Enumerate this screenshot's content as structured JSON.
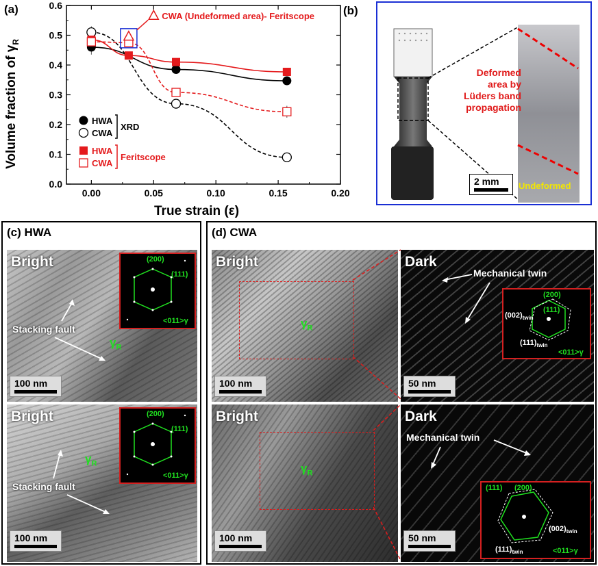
{
  "panel_a": {
    "label": "(a)",
    "ylabel": "Volume fraction of γ",
    "ylabel_sub": "R",
    "xlabel": "True strain (ε)",
    "annotation": "CWA (Undeformed area)- Feritscope",
    "legend": {
      "xrd": {
        "items": [
          "HWA",
          "CWA"
        ],
        "group": "XRD"
      },
      "feritscope": {
        "items": [
          "HWA",
          "CWA"
        ],
        "group": "Feritscope"
      }
    }
  },
  "panel_b": {
    "label": "(b)",
    "deformed_text": [
      "Deformed",
      "area by",
      "Lüders band",
      "propagation"
    ],
    "undeformed_text": "Undeformed",
    "scale": "2 mm"
  },
  "panel_c": {
    "label": "(c) HWA",
    "top": {
      "mode": "Bright",
      "scale": "100 nm",
      "note": "Stacking fault",
      "phase": "γ",
      "phase_sub": "R"
    },
    "bottom": {
      "mode": "Bright",
      "scale": "100 nm",
      "note": "Stacking fault",
      "phase": "γ",
      "phase_sub": "R"
    },
    "inset": {
      "spot1": "(200)",
      "spot2": "(111)",
      "zone": "<011>γ"
    }
  },
  "panel_d": {
    "label": "(d) CWA",
    "top_bright": {
      "mode": "Bright",
      "scale": "100 nm",
      "phase": "γ",
      "phase_sub": "R"
    },
    "top_dark": {
      "mode": "Dark",
      "scale": "50 nm",
      "note": "Mechanical twin"
    },
    "bottom_bright": {
      "mode": "Bright",
      "scale": "100 nm",
      "phase": "γ",
      "phase_sub": "R"
    },
    "bottom_dark": {
      "mode": "Dark",
      "scale": "50 nm",
      "note": "Mechanical twin"
    },
    "inset_top": {
      "g200": "(200)",
      "g111": "(111)",
      "twin002": "(002)",
      "twin002_sub": "twin",
      "twin111": "(111)",
      "twin111_sub": "twin",
      "zone": "<011>γ"
    },
    "inset_bottom": {
      "g111": "(111)",
      "g200": "(200)",
      "twin002": "(002)",
      "twin002_sub": "twin",
      "twin111": "(111)",
      "twin111_sub": "twin",
      "zone": "<011>γ"
    }
  },
  "chart_data": {
    "type": "scatter",
    "xlabel": "True strain (ε)",
    "ylabel": "Volume fraction of γR",
    "xlim": [
      -0.02,
      0.2
    ],
    "ylim": [
      0.0,
      0.6
    ],
    "xticks": [
      "0.00",
      "0.05",
      "0.10",
      "0.15",
      "0.20"
    ],
    "yticks": [
      "0.0",
      "0.1",
      "0.2",
      "0.3",
      "0.4",
      "0.5",
      "0.6"
    ],
    "series": [
      {
        "name": "HWA XRD",
        "marker": "filled-circle",
        "color": "#000000",
        "line": "solid",
        "x": [
          0.0,
          0.068,
          0.157
        ],
        "y": [
          0.46,
          0.385,
          0.347
        ]
      },
      {
        "name": "CWA XRD",
        "marker": "open-circle",
        "color": "#000000",
        "line": "dashed",
        "x": [
          0.0,
          0.068,
          0.157
        ],
        "y": [
          0.51,
          0.27,
          0.09
        ]
      },
      {
        "name": "HWA Feritscope",
        "marker": "filled-square",
        "color": "#e41a1c",
        "line": "solid",
        "x": [
          0.0,
          0.03,
          0.068,
          0.157
        ],
        "y": [
          0.485,
          0.432,
          0.41,
          0.377
        ]
      },
      {
        "name": "CWA Feritscope",
        "marker": "open-square",
        "color": "#e41a1c",
        "line": "dashed",
        "x": [
          0.0,
          0.03,
          0.068,
          0.157
        ],
        "y": [
          0.478,
          0.475,
          0.308,
          0.243
        ]
      },
      {
        "name": "CWA (Undeformed area)- Feritscope",
        "marker": "open-triangle",
        "color": "#e41a1c",
        "line": "none",
        "x": [
          0.03
        ],
        "y": [
          0.495
        ]
      }
    ]
  }
}
